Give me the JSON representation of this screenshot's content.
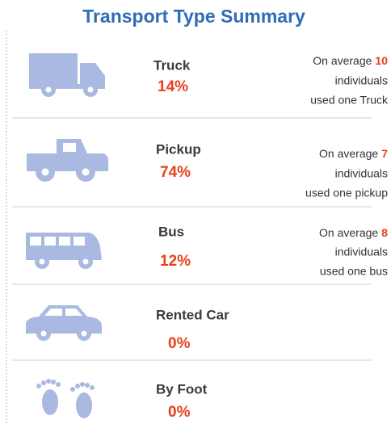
{
  "title": "Transport Type Summary",
  "rows": [
    {
      "label": "Truck",
      "share": "14%",
      "note": [
        "On average",
        "individuals",
        "used one Truck"
      ],
      "average": "10"
    },
    {
      "label": "Pickup",
      "share": "74%",
      "note": [
        "On average",
        "individuals",
        "used one pickup"
      ],
      "average": "7"
    },
    {
      "label": "Bus",
      "share": "12%",
      "note": [
        "On average",
        "individuals",
        "used one bus"
      ],
      "average": "8"
    },
    {
      "label": "Rented Car",
      "share": "0%"
    },
    {
      "label": "By Foot",
      "share": "0%"
    }
  ]
}
